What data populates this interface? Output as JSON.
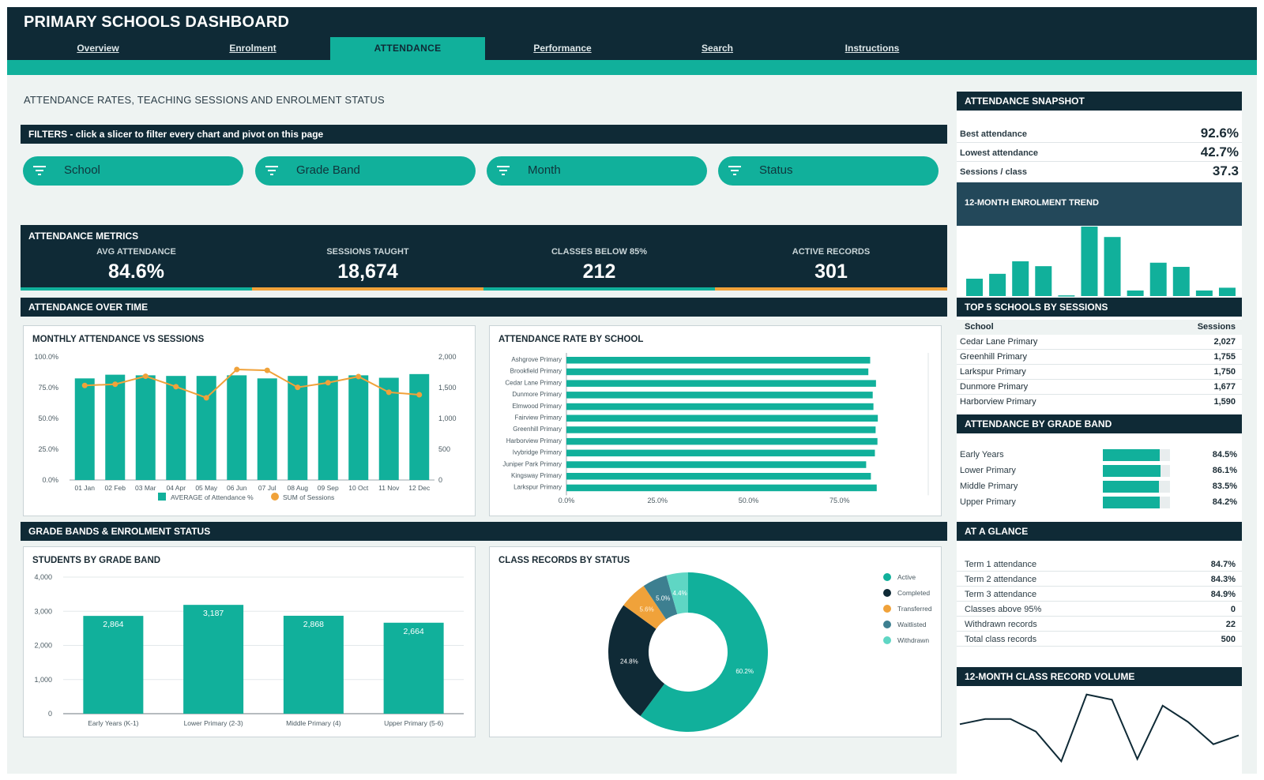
{
  "app": {
    "title": "PRIMARY SCHOOLS DASHBOARD"
  },
  "colors": {
    "navy": "#0f2a36",
    "teal": "#11b09b",
    "orange": "#f0a23a",
    "slate": "#3d7f90",
    "mint": "#5fd6c4",
    "background": "#eef3f2"
  },
  "nav": {
    "tabs": [
      {
        "label": "Overview",
        "active": false
      },
      {
        "label": "Enrolment",
        "active": false
      },
      {
        "label": "ATTENDANCE",
        "active": true
      },
      {
        "label": "Performance",
        "active": false
      },
      {
        "label": "Search",
        "active": false
      },
      {
        "label": "Instructions",
        "active": false
      }
    ]
  },
  "page": {
    "title": "ATTENDANCE RATES, TEACHING SESSIONS AND ENROLMENT STATUS"
  },
  "filters": {
    "header": "FILTERS  -  click a slicer to filter every chart and pivot on this page",
    "slicers": [
      {
        "label": "School",
        "icon": "filter-icon"
      },
      {
        "label": "Grade Band",
        "icon": "filter-icon"
      },
      {
        "label": "Month",
        "icon": "filter-icon"
      },
      {
        "label": "Status",
        "icon": "filter-icon"
      }
    ]
  },
  "metrics": {
    "header": "ATTENDANCE METRICS",
    "items": [
      {
        "label": "AVG ATTENDANCE",
        "value": "84.6%",
        "accent": "#11b09b"
      },
      {
        "label": "SESSIONS TAUGHT",
        "value": "18,674",
        "accent": "#f0a23a"
      },
      {
        "label": "CLASSES BELOW 85%",
        "value": "212",
        "accent": "#11b09b"
      },
      {
        "label": "ACTIVE RECORDS",
        "value": "301",
        "accent": "#f0a23a"
      }
    ]
  },
  "sections": {
    "over_time": "ATTENDANCE OVER TIME",
    "grade_status": "GRADE BANDS & ENROLMENT STATUS"
  },
  "chart_data": [
    {
      "id": "monthly",
      "type": "bar",
      "title": "MONTHLY ATTENDANCE VS SESSIONS",
      "categories": [
        "01 Jan",
        "02 Feb",
        "03 Mar",
        "04 Apr",
        "05 May",
        "06 Jun",
        "07 Jul",
        "08 Aug",
        "09 Sep",
        "10 Oct",
        "11 Nov",
        "12 Dec"
      ],
      "series": [
        {
          "name": "AVERAGE of Attendance %",
          "type": "bar",
          "axis": "left",
          "color": "#11b09b",
          "values": [
            82.5,
            85.5,
            85.0,
            84.5,
            84.5,
            85.0,
            82.5,
            84.5,
            84.5,
            85.0,
            83.0,
            86.0
          ]
        },
        {
          "name": "SUM of Sessions",
          "type": "line",
          "axis": "right",
          "color": "#f0a23a",
          "values": [
            1535,
            1555,
            1685,
            1515,
            1335,
            1795,
            1780,
            1505,
            1580,
            1680,
            1425,
            1385
          ]
        }
      ],
      "y_left": {
        "ticks": [
          "100.0%",
          "75.0%",
          "50.0%",
          "25.0%",
          "0.0%"
        ],
        "range": [
          0,
          100
        ]
      },
      "y_right": {
        "ticks": [
          "2,000",
          "1,500",
          "1,000",
          "500",
          "0"
        ],
        "range": [
          0,
          2000
        ]
      },
      "legend": "bottom",
      "grid": false
    },
    {
      "id": "by_school",
      "type": "bar",
      "orientation": "horizontal",
      "title": "ATTENDANCE RATE BY SCHOOL",
      "categories": [
        "Ashgrove Primary",
        "Brookfield Primary",
        "Cedar Lane Primary",
        "Dunmore Primary",
        "Elmwood Primary",
        "Fairview Primary",
        "Greenhill Primary",
        "Harborview Primary",
        "Ivybridge Primary",
        "Juniper Park Primary",
        "Kingsway Primary",
        "Larkspur Primary"
      ],
      "values": [
        83.4,
        82.9,
        85.0,
        84.1,
        84.3,
        85.5,
        84.9,
        85.4,
        84.7,
        82.3,
        83.6,
        85.2
      ],
      "xlim": [
        0,
        100
      ],
      "x_ticks": [
        "0.0%",
        "25.0%",
        "50.0%",
        "75.0%"
      ],
      "grid": false
    },
    {
      "id": "grade_band",
      "type": "bar",
      "title": "STUDENTS BY GRADE BAND",
      "categories": [
        "Early Years (K-1)",
        "Lower Primary (2-3)",
        "Middle Primary (4)",
        "Upper Primary (5-6)"
      ],
      "values": [
        2864,
        3187,
        2868,
        2664
      ],
      "labels": [
        "2,864",
        "3,187",
        "2,868",
        "2,664"
      ],
      "ylim": [
        0,
        4000
      ],
      "y_ticks": [
        "4,000",
        "3,000",
        "2,000",
        "1,000",
        "0"
      ],
      "grid": true
    },
    {
      "id": "status",
      "type": "pie",
      "donut": true,
      "title": "CLASS RECORDS BY STATUS",
      "categories": [
        "Active",
        "Completed",
        "Transferred",
        "Waitlisted",
        "Withdrawn"
      ],
      "values": [
        60.2,
        24.8,
        5.6,
        5.0,
        4.4
      ],
      "labels": [
        "60.2%",
        "24.8%",
        "5.6%",
        "5.0%",
        "4.4%"
      ],
      "colors": [
        "#11b09b",
        "#0f2a36",
        "#f0a23a",
        "#3d7f90",
        "#5fd6c4"
      ],
      "legend": "right"
    },
    {
      "id": "enrol_trend",
      "type": "bar",
      "title": "12-MONTH ENROLMENT TREND",
      "values": [
        25,
        32,
        50,
        43,
        1,
        100,
        85,
        8,
        48,
        42,
        8,
        12
      ]
    },
    {
      "id": "record_volume",
      "type": "line",
      "title": "12-MONTH CLASS RECORD VOLUME",
      "values": [
        55,
        62,
        62,
        45,
        5,
        95,
        88,
        8,
        80,
        58,
        28,
        40
      ]
    }
  ],
  "snapshot": {
    "header": "ATTENDANCE SNAPSHOT",
    "rows": [
      {
        "label": "Best attendance",
        "value": "92.6%"
      },
      {
        "label": "Lowest attendance",
        "value": "42.7%"
      },
      {
        "label": "Sessions / class",
        "value": "37.3"
      }
    ]
  },
  "top5": {
    "header": "TOP 5 SCHOOLS BY SESSIONS",
    "columns": [
      "School",
      "Sessions"
    ],
    "rows": [
      {
        "school": "Cedar Lane Primary",
        "sessions": "2,027"
      },
      {
        "school": "Greenhill Primary",
        "sessions": "1,755"
      },
      {
        "school": "Larkspur Primary",
        "sessions": "1,750"
      },
      {
        "school": "Dunmore Primary",
        "sessions": "1,677"
      },
      {
        "school": "Harborview Primary",
        "sessions": "1,590"
      }
    ]
  },
  "grade_attendance": {
    "header": "ATTENDANCE BY GRADE BAND",
    "rows": [
      {
        "label": "Early Years",
        "value": "84.5%",
        "fraction": 0.845
      },
      {
        "label": "Lower Primary",
        "value": "86.1%",
        "fraction": 0.861
      },
      {
        "label": "Middle Primary",
        "value": "83.5%",
        "fraction": 0.835
      },
      {
        "label": "Upper Primary",
        "value": "84.2%",
        "fraction": 0.842
      }
    ]
  },
  "glance": {
    "header": "AT A GLANCE",
    "rows": [
      {
        "label": "Term 1 attendance",
        "value": "84.7%"
      },
      {
        "label": "Term 2 attendance",
        "value": "84.3%"
      },
      {
        "label": "Term 3 attendance",
        "value": "84.9%"
      },
      {
        "label": "Classes above 95%",
        "value": "0"
      },
      {
        "label": "Withdrawn records",
        "value": "22"
      },
      {
        "label": "Total class records",
        "value": "500"
      }
    ]
  }
}
